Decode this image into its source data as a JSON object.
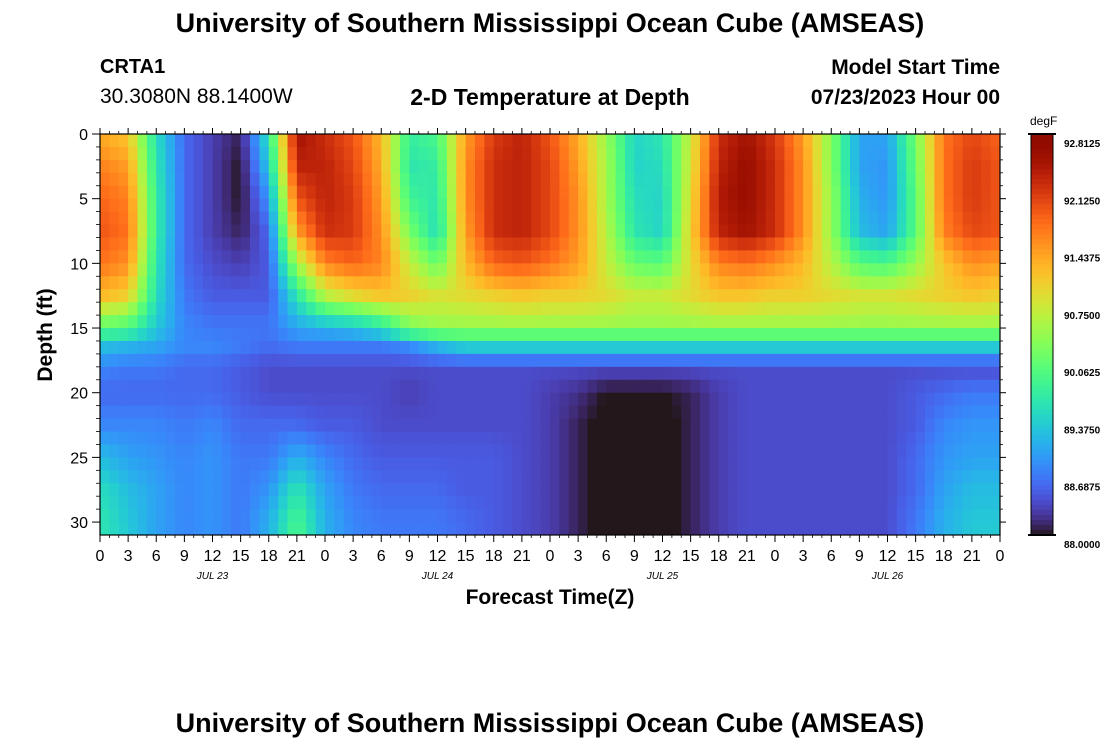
{
  "header": {
    "title": "University of Southern Mississippi Ocean Cube (AMSEAS)",
    "station_id": "CRTA1",
    "station_coords": "30.3080N  88.1400W",
    "plot_title": "2-D Temperature at Depth",
    "start_label": "Model Start Time",
    "start_value": "07/23/2023 Hour 00"
  },
  "footer": {
    "title": "University of Southern Mississippi Ocean Cube (AMSEAS)"
  },
  "chart_data": {
    "type": "heatmap",
    "title": "2-D Temperature at Depth",
    "xlabel": "Forecast Time(Z)",
    "ylabel": "Depth (ft)",
    "x_hours": [
      0,
      96
    ],
    "x_tick_labels": [
      "0",
      "3",
      "6",
      "9",
      "12",
      "15",
      "18",
      "21",
      "0",
      "3",
      "6",
      "9",
      "12",
      "15",
      "18",
      "21",
      "0",
      "3",
      "6",
      "9",
      "12",
      "15",
      "18",
      "21",
      "0",
      "3",
      "6",
      "9",
      "12",
      "15",
      "18",
      "21",
      "0"
    ],
    "day_labels": [
      "JUL 23",
      "JUL 24",
      "JUL 25",
      "JUL 26"
    ],
    "ylim": [
      0,
      31
    ],
    "y_ticks": [
      0,
      5,
      10,
      15,
      20,
      25,
      30
    ],
    "y_inverted": true,
    "colorbar": {
      "unit": "degF",
      "range": [
        88.0,
        92.8125
      ],
      "tick_labels": [
        "92.8125",
        "92.1250",
        "91.4375",
        "90.7500",
        "90.0625",
        "89.3750",
        "88.6875",
        "88.0000"
      ],
      "colormap": "turbo"
    },
    "depth_levels": [
      0,
      2.5,
      5,
      7.5,
      10,
      12.5,
      15,
      16.5,
      18,
      20,
      22.5,
      25,
      27.5,
      30,
      31
    ],
    "time_hours": [
      0,
      3,
      6,
      9,
      12,
      15,
      18,
      21,
      24,
      27,
      30,
      33,
      36,
      39,
      42,
      45,
      48,
      51,
      54,
      57,
      60,
      63,
      66,
      69,
      72,
      75,
      78,
      81,
      84,
      87,
      90,
      93,
      96
    ],
    "values": [
      [
        91.3,
        91.1,
        89.5,
        88.6,
        88.3,
        88.1,
        89.6,
        92.5,
        92.2,
        91.9,
        91.2,
        89.7,
        89.9,
        91.4,
        92.1,
        92.3,
        91.9,
        91.3,
        90.4,
        89.4,
        89.6,
        90.7,
        92.2,
        92.5,
        92.1,
        91.4,
        90.3,
        89.0,
        89.0,
        90.2,
        91.7,
        92.0,
        91.8
      ],
      [
        91.6,
        91.4,
        89.6,
        88.6,
        88.3,
        88.0,
        89.3,
        92.3,
        92.3,
        92.0,
        91.3,
        89.6,
        89.7,
        91.5,
        92.2,
        92.3,
        92.0,
        91.4,
        90.5,
        89.4,
        89.5,
        90.8,
        92.3,
        92.6,
        92.2,
        91.5,
        90.3,
        89.0,
        88.9,
        90.1,
        91.7,
        92.1,
        91.9
      ],
      [
        91.8,
        91.6,
        89.7,
        88.6,
        88.3,
        88.0,
        88.9,
        91.9,
        92.3,
        92.1,
        91.4,
        89.8,
        89.6,
        91.5,
        92.2,
        92.3,
        92.0,
        91.5,
        90.5,
        89.5,
        89.4,
        90.9,
        92.4,
        92.6,
        92.2,
        91.5,
        90.4,
        89.1,
        88.9,
        90.0,
        91.7,
        92.1,
        91.9
      ],
      [
        91.9,
        91.7,
        89.7,
        88.6,
        88.3,
        88.1,
        88.6,
        91.4,
        92.2,
        92.1,
        91.5,
        90.2,
        89.5,
        91.4,
        92.2,
        92.3,
        92.0,
        91.5,
        90.6,
        89.6,
        89.4,
        91.0,
        92.3,
        92.5,
        92.2,
        91.5,
        90.4,
        89.2,
        89.0,
        90.0,
        91.6,
        92.0,
        91.9
      ],
      [
        91.7,
        91.5,
        89.6,
        88.6,
        88.4,
        88.3,
        88.5,
        90.5,
        91.6,
        91.8,
        91.6,
        90.7,
        90.1,
        91.2,
        91.8,
        91.9,
        91.7,
        91.4,
        90.7,
        90.1,
        90.0,
        90.9,
        91.6,
        91.7,
        91.5,
        91.2,
        90.6,
        90.0,
        89.9,
        90.4,
        91.1,
        91.5,
        91.4
      ],
      [
        91.2,
        91.0,
        89.5,
        88.7,
        88.5,
        88.5,
        88.5,
        89.6,
        90.6,
        90.9,
        91.1,
        91.0,
        90.8,
        90.9,
        91.0,
        91.1,
        91.0,
        91.0,
        90.9,
        90.7,
        90.7,
        90.9,
        91.1,
        91.1,
        91.0,
        91.0,
        90.9,
        90.8,
        90.8,
        90.9,
        91.0,
        91.1,
        91.0
      ],
      [
        90.0,
        89.9,
        89.3,
        88.8,
        88.7,
        88.7,
        88.7,
        89.0,
        89.1,
        89.2,
        89.5,
        90.2,
        90.4,
        90.4,
        90.4,
        90.4,
        90.4,
        90.4,
        90.4,
        90.4,
        90.4,
        90.4,
        90.4,
        90.4,
        90.4,
        90.4,
        90.4,
        90.4,
        90.4,
        90.4,
        90.4,
        90.4,
        90.4
      ],
      [
        89.2,
        89.1,
        89.0,
        88.8,
        88.8,
        88.7,
        88.6,
        88.7,
        88.7,
        88.7,
        88.7,
        88.8,
        89.1,
        89.3,
        89.3,
        89.3,
        89.3,
        89.3,
        89.3,
        89.3,
        89.3,
        89.3,
        89.3,
        89.3,
        89.3,
        89.3,
        89.3,
        89.3,
        89.3,
        89.3,
        89.3,
        89.3,
        89.3
      ],
      [
        88.8,
        88.7,
        88.7,
        88.6,
        88.6,
        88.5,
        88.4,
        88.4,
        88.4,
        88.4,
        88.4,
        88.4,
        88.4,
        88.4,
        88.4,
        88.4,
        88.4,
        88.4,
        88.4,
        88.4,
        88.4,
        88.4,
        88.4,
        88.4,
        88.4,
        88.4,
        88.4,
        88.4,
        88.4,
        88.4,
        88.4,
        88.4,
        88.4
      ],
      [
        88.6,
        88.6,
        88.6,
        88.6,
        88.6,
        88.5,
        88.4,
        88.4,
        88.4,
        88.4,
        88.4,
        88.3,
        88.4,
        88.4,
        88.4,
        88.4,
        88.3,
        88.2,
        88.0,
        88.0,
        88.0,
        88.1,
        88.3,
        88.4,
        88.4,
        88.4,
        88.4,
        88.4,
        88.4,
        88.5,
        88.6,
        88.7,
        88.7
      ],
      [
        88.8,
        88.8,
        88.8,
        88.7,
        88.8,
        88.6,
        88.6,
        88.6,
        88.5,
        88.5,
        88.4,
        88.4,
        88.4,
        88.4,
        88.4,
        88.4,
        88.3,
        88.1,
        87.9,
        87.9,
        87.9,
        88.1,
        88.3,
        88.4,
        88.4,
        88.4,
        88.4,
        88.4,
        88.4,
        88.5,
        88.8,
        88.9,
        88.9
      ],
      [
        89.2,
        89.0,
        88.9,
        88.8,
        88.9,
        88.7,
        88.7,
        89.1,
        88.8,
        88.6,
        88.5,
        88.5,
        88.5,
        88.5,
        88.5,
        88.4,
        88.3,
        88.1,
        87.9,
        87.9,
        87.9,
        88.1,
        88.3,
        88.4,
        88.4,
        88.4,
        88.4,
        88.4,
        88.4,
        88.6,
        88.9,
        89.0,
        89.0
      ],
      [
        89.5,
        89.2,
        89.0,
        88.8,
        88.9,
        88.7,
        88.9,
        89.6,
        89.0,
        88.7,
        88.6,
        88.6,
        88.6,
        88.5,
        88.5,
        88.4,
        88.3,
        88.1,
        87.9,
        87.9,
        87.9,
        88.1,
        88.3,
        88.4,
        88.4,
        88.4,
        88.4,
        88.4,
        88.4,
        88.6,
        89.0,
        89.2,
        89.2
      ],
      [
        89.6,
        89.3,
        89.0,
        88.8,
        88.9,
        88.7,
        89.1,
        89.9,
        89.1,
        88.8,
        88.7,
        88.7,
        88.7,
        88.6,
        88.5,
        88.4,
        88.3,
        88.1,
        87.9,
        87.9,
        87.9,
        88.1,
        88.3,
        88.4,
        88.4,
        88.4,
        88.4,
        88.4,
        88.4,
        88.7,
        89.1,
        89.3,
        89.3
      ],
      [
        89.6,
        89.3,
        89.0,
        88.8,
        88.9,
        88.7,
        89.1,
        89.9,
        89.1,
        88.8,
        88.7,
        88.7,
        88.7,
        88.6,
        88.5,
        88.4,
        88.3,
        88.1,
        87.9,
        87.9,
        87.9,
        88.1,
        88.3,
        88.4,
        88.4,
        88.4,
        88.4,
        88.4,
        88.4,
        88.7,
        89.1,
        89.3,
        89.3
      ]
    ]
  }
}
